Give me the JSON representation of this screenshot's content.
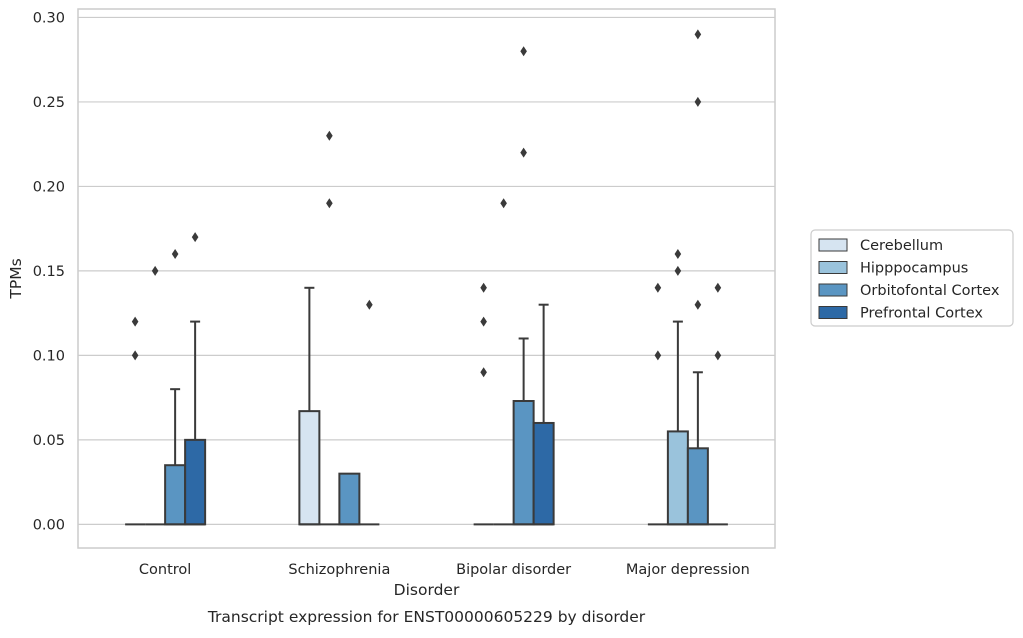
{
  "chart_data": {
    "type": "box",
    "title": "",
    "caption": "Transcript expression for ENST00000605229 by disorder",
    "xlabel": "Disorder",
    "ylabel": "TPMs",
    "ylim": [
      -0.014,
      0.305
    ],
    "yticks": [
      0.0,
      0.05,
      0.1,
      0.15,
      0.2,
      0.25,
      0.3
    ],
    "ytick_labels": [
      "0.00",
      "0.05",
      "0.10",
      "0.15",
      "0.20",
      "0.25",
      "0.30"
    ],
    "grid": "horizontal",
    "legend_position": "right",
    "categories": [
      "Control",
      "Schizophrenia",
      "Bipolar disorder",
      "Major depression"
    ],
    "series": [
      {
        "name": "Cerebellum",
        "color": "#d6e4f1",
        "boxes": [
          {
            "q1": 0,
            "median": 0,
            "q3": 0,
            "whisker_low": 0,
            "whisker_high": 0,
            "outliers": [
              0.1,
              0.12
            ]
          },
          {
            "q1": 0,
            "median": 0,
            "q3": 0.067,
            "whisker_low": 0,
            "whisker_high": 0.14,
            "outliers": []
          },
          {
            "q1": 0,
            "median": 0,
            "q3": 0,
            "whisker_low": 0,
            "whisker_high": 0,
            "outliers": [
              0.09,
              0.12,
              0.14
            ]
          },
          {
            "q1": 0,
            "median": 0,
            "q3": 0,
            "whisker_low": 0,
            "whisker_high": 0,
            "outliers": [
              0.1,
              0.14
            ]
          }
        ]
      },
      {
        "name": "Hipppocampus",
        "color": "#9ac3dc",
        "boxes": [
          {
            "q1": 0,
            "median": 0,
            "q3": 0,
            "whisker_low": 0,
            "whisker_high": 0,
            "outliers": [
              0.15
            ]
          },
          {
            "q1": 0,
            "median": 0,
            "q3": 0,
            "whisker_low": 0,
            "whisker_high": 0,
            "outliers": [
              0.19,
              0.23
            ]
          },
          {
            "q1": 0,
            "median": 0,
            "q3": 0,
            "whisker_low": 0,
            "whisker_high": 0,
            "outliers": [
              0.19
            ]
          },
          {
            "q1": 0,
            "median": 0,
            "q3": 0.055,
            "whisker_low": 0,
            "whisker_high": 0.12,
            "outliers": [
              0.15,
              0.16
            ]
          }
        ]
      },
      {
        "name": "Orbitofontal Cortex",
        "color": "#5a95c2",
        "boxes": [
          {
            "q1": 0,
            "median": 0,
            "q3": 0.035,
            "whisker_low": 0,
            "whisker_high": 0.08,
            "outliers": [
              0.16
            ]
          },
          {
            "q1": 0,
            "median": 0,
            "q3": 0.03,
            "whisker_low": 0,
            "whisker_high": 0.03,
            "outliers": []
          },
          {
            "q1": 0,
            "median": 0,
            "q3": 0.073,
            "whisker_low": 0,
            "whisker_high": 0.11,
            "outliers": [
              0.22,
              0.28
            ]
          },
          {
            "q1": 0,
            "median": 0,
            "q3": 0.045,
            "whisker_low": 0,
            "whisker_high": 0.09,
            "outliers": [
              0.13,
              0.25,
              0.29
            ]
          }
        ]
      },
      {
        "name": "Prefrontal Cortex",
        "color": "#2d69a6",
        "boxes": [
          {
            "q1": 0,
            "median": 0,
            "q3": 0.05,
            "whisker_low": 0,
            "whisker_high": 0.12,
            "outliers": [
              0.17
            ]
          },
          {
            "q1": 0,
            "median": 0,
            "q3": 0,
            "whisker_low": 0,
            "whisker_high": 0,
            "outliers": [
              0.13
            ]
          },
          {
            "q1": 0,
            "median": 0,
            "q3": 0.06,
            "whisker_low": 0,
            "whisker_high": 0.13,
            "outliers": []
          },
          {
            "q1": 0,
            "median": 0,
            "q3": 0,
            "whisker_low": 0,
            "whisker_high": 0,
            "outliers": [
              0.1,
              0.14
            ]
          }
        ]
      }
    ],
    "colors": {
      "grid": "#cccccc",
      "axes_frame": "#cccccc",
      "line": "#3a3a3a",
      "legend_border": "#cccccc"
    }
  }
}
